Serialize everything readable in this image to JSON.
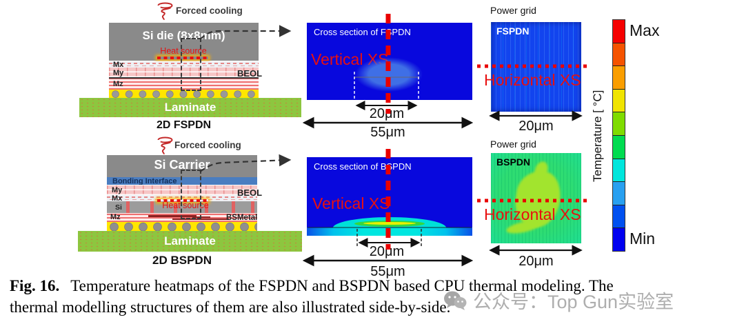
{
  "caption": {
    "label": "Fig. 16.",
    "line1": "Temperature heatmaps of the FSPDN and BSPDN based CPU thermal modeling. The",
    "line2": "thermal modelling structures of them are also illustrated side-by-side."
  },
  "watermark": {
    "text": "公众号：Top Gun实验室"
  },
  "colorbar": {
    "title": "Temperature [ °C]",
    "max": "Max",
    "min": "Min",
    "colors": [
      "#f50000",
      "#f55300",
      "#fa9e00",
      "#f0e400",
      "#7fdc00",
      "#00dc50",
      "#00e6dc",
      "#28a0f0",
      "#0050f0",
      "#0000f0"
    ]
  },
  "fspdn": {
    "schematic": {
      "cooling": "Forced cooling",
      "die": "Si die (8x8mm)",
      "heat_source": "Heat source",
      "layer_mx": "Mx",
      "layer_my": "My",
      "layer_mz": "Mz",
      "beol": "BEOL",
      "laminate": "Laminate",
      "caption": "2D FSPDN"
    },
    "cross_section": {
      "title": "Cross section of FSPDN",
      "marker": "Vertical XS",
      "width_inner": "20μm",
      "width_outer": "55μm"
    },
    "power_grid": {
      "title": "Power grid",
      "label": "FSPDN",
      "marker": "Horizontal XS",
      "width": "20μm"
    }
  },
  "bspdn": {
    "schematic": {
      "cooling": "Forced cooling",
      "carrier": "Si Carrier",
      "bonding": "Bonding Interface",
      "layer_my": "My",
      "layer_mx": "Mx",
      "layer_si": "Si",
      "layer_mz": "Mz",
      "beol": "BEOL",
      "bsmetal": "BSMetal",
      "heat_source": "Heat source",
      "laminate": "Laminate",
      "caption": "2D BSPDN"
    },
    "cross_section": {
      "title": "Cross section of BSPDN",
      "marker": "Vertical XS",
      "width_inner": "20μm",
      "width_outer": "55μm"
    },
    "power_grid": {
      "title": "Power grid",
      "label": "BSPDN",
      "marker": "Horizontal XS",
      "width": "20μm"
    }
  },
  "colors": {
    "accent_red": "#e81010",
    "xs_background_blue": "#0808dd",
    "fspdn_grid_blue": "#1244ee",
    "bspdn_grid_green": "#2edc72",
    "laminate_green": "#8dc63f",
    "die_gray": "#8a8a8a",
    "bonding_blue": "#4a7dc0",
    "bump_yellow": "#ffe600"
  }
}
